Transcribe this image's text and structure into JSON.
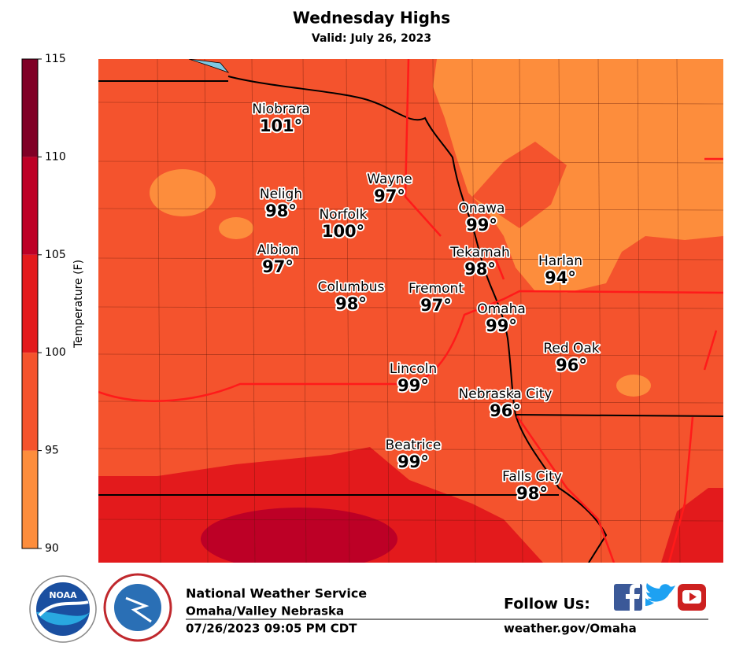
{
  "header": {
    "title": "Wednesday  Highs",
    "subtitle": "Valid: July 26, 2023"
  },
  "colorbar": {
    "label": "Temperature (F)",
    "ticks": [
      90,
      95,
      100,
      105,
      110,
      115
    ],
    "colors": [
      "#fd8d3c",
      "#f4532d",
      "#e31a1c",
      "#bd0026",
      "#800026"
    ]
  },
  "cities": [
    {
      "name": "Niobrara",
      "temp": "101°"
    },
    {
      "name": "Wayne",
      "temp": "97°"
    },
    {
      "name": "Neligh",
      "temp": "98°"
    },
    {
      "name": "Norfolk",
      "temp": "100°"
    },
    {
      "name": "Onawa",
      "temp": "99°"
    },
    {
      "name": "Albion",
      "temp": "97°"
    },
    {
      "name": "Tekamah",
      "temp": "98°"
    },
    {
      "name": "Harlan",
      "temp": "94°"
    },
    {
      "name": "Columbus",
      "temp": "98°"
    },
    {
      "name": "Fremont",
      "temp": "97°"
    },
    {
      "name": "Omaha",
      "temp": "99°"
    },
    {
      "name": "Red Oak",
      "temp": "96°"
    },
    {
      "name": "Lincoln",
      "temp": "99°"
    },
    {
      "name": "Nebraska City",
      "temp": "96°"
    },
    {
      "name": "Beatrice",
      "temp": "99°"
    },
    {
      "name": "Falls City",
      "temp": "98°"
    }
  ],
  "footer": {
    "org": "National Weather Service",
    "office": "Omaha/Valley Nebraska",
    "timestamp": "07/26/2023 09:05 PM CDT",
    "follow": "Follow Us:",
    "url": "weather.gov/Omaha",
    "noaa": "NOAA"
  }
}
